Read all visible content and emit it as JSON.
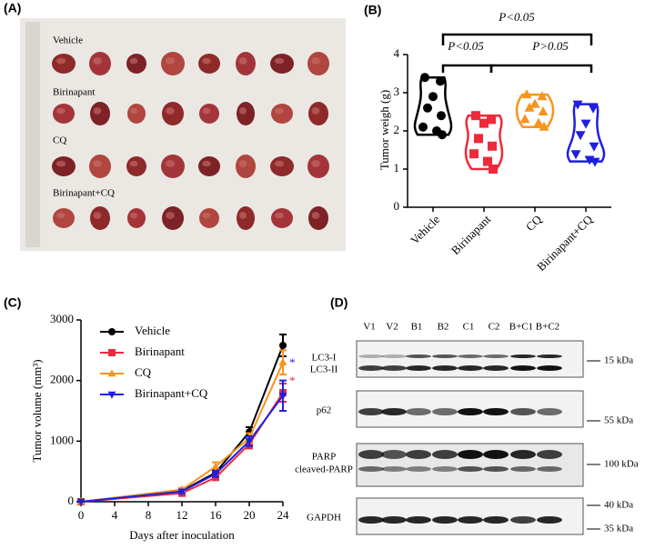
{
  "panels": [
    "(A)",
    "(B)",
    "(C)",
    "(D)"
  ],
  "photo": {
    "labels": [
      "Vehicle",
      "Birinapant",
      "CQ",
      "Birinapant+CQ"
    ]
  },
  "chart_data": [
    {
      "type": "violin",
      "y_label": "Tumor weigh (g)",
      "categories": [
        "Vehicle",
        "Birinapant",
        "CQ",
        "Birinapant+CQ"
      ],
      "ylim": [
        0,
        4
      ],
      "yticks": [
        0,
        1,
        2,
        3,
        4
      ],
      "series": [
        {
          "name": "Vehicle",
          "color": "#000000",
          "marker": "circle",
          "values": [
            3.4,
            3.3,
            2.9,
            2.6,
            2.4,
            2.1,
            2.0,
            1.9
          ]
        },
        {
          "name": "Birinapant",
          "color": "#ee2a3a",
          "marker": "square",
          "values": [
            2.4,
            2.3,
            2.2,
            1.8,
            1.6,
            1.4,
            1.2,
            1.0
          ]
        },
        {
          "name": "CQ",
          "color": "#f7941d",
          "marker": "triangle",
          "values": [
            2.95,
            2.9,
            2.7,
            2.6,
            2.5,
            2.3,
            2.2,
            2.1
          ]
        },
        {
          "name": "Birinapant+CQ",
          "color": "#1f1fe0",
          "marker": "down-triangle",
          "values": [
            2.7,
            2.6,
            2.2,
            1.9,
            1.6,
            1.4,
            1.25,
            1.2
          ]
        }
      ],
      "annotations": [
        "P<0.05",
        "P<0.05",
        "P>0.05"
      ]
    },
    {
      "type": "line",
      "x_label": "Days after inoculation",
      "y_label": "Tumor volume (mm³)",
      "x": [
        0,
        12,
        16,
        20,
        24
      ],
      "xlim": [
        0,
        24
      ],
      "xticks": [
        0,
        4,
        8,
        12,
        16,
        20,
        24
      ],
      "ylim": [
        0,
        3000
      ],
      "yticks": [
        0,
        1000,
        2000,
        3000
      ],
      "series": [
        {
          "name": "Vehicle",
          "color": "#000000",
          "marker": "circle",
          "values": [
            0,
            180,
            480,
            1150,
            2580
          ],
          "errors": [
            0,
            30,
            50,
            80,
            180
          ]
        },
        {
          "name": "Birinapant",
          "color": "#ee2a3a",
          "marker": "square",
          "values": [
            0,
            140,
            400,
            950,
            1800
          ],
          "errors": [
            0,
            20,
            40,
            70,
            150
          ]
        },
        {
          "name": "CQ",
          "color": "#f7941d",
          "marker": "triangle",
          "values": [
            0,
            200,
            580,
            1050,
            2300
          ],
          "errors": [
            0,
            30,
            70,
            80,
            200
          ]
        },
        {
          "name": "Birinapant+CQ",
          "color": "#1f1fe0",
          "marker": "down-triangle",
          "values": [
            0,
            170,
            460,
            1000,
            1750
          ],
          "errors": [
            0,
            30,
            50,
            80,
            250
          ]
        }
      ],
      "annotations": [
        {
          "text": "*",
          "color": "#1f1fe0"
        },
        {
          "text": "*",
          "color": "#ee2a3a"
        }
      ]
    }
  ],
  "blot": {
    "lanes": [
      "V1",
      "V2",
      "B1",
      "B2",
      "C1",
      "C2",
      "B+C1",
      "B+C2"
    ],
    "rows": [
      "LC3-I",
      "LC3-II",
      "p62",
      "PARP",
      "cleaved-PARP",
      "GAPDH"
    ],
    "markers": [
      "15 kDa",
      "55 kDa",
      "100 kDa",
      "40 kDa",
      "35 kDa"
    ]
  }
}
